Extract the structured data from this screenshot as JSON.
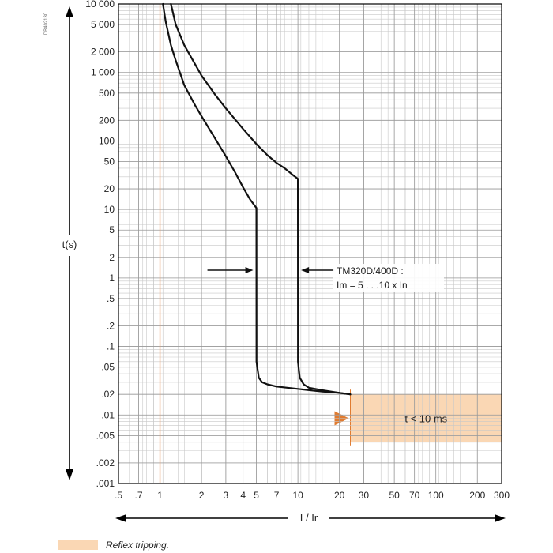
{
  "chart_data": {
    "type": "line",
    "title": "",
    "code": "DB402130",
    "xlabel": "I / Ir",
    "ylabel": "t(s)",
    "xscale": "log",
    "yscale": "log",
    "xlim": [
      0.5,
      300
    ],
    "ylim": [
      0.001,
      10000
    ],
    "grid": true,
    "x_tick_labels": [
      {
        "value": 0.5,
        "label": ".5"
      },
      {
        "value": 0.7,
        "label": ".7"
      },
      {
        "value": 1,
        "label": "1"
      },
      {
        "value": 2,
        "label": "2"
      },
      {
        "value": 3,
        "label": "3"
      },
      {
        "value": 4,
        "label": "4"
      },
      {
        "value": 5,
        "label": "5"
      },
      {
        "value": 7,
        "label": "7"
      },
      {
        "value": 10,
        "label": "10"
      },
      {
        "value": 20,
        "label": "20"
      },
      {
        "value": 30,
        "label": "30"
      },
      {
        "value": 50,
        "label": "50"
      },
      {
        "value": 70,
        "label": "70"
      },
      {
        "value": 100,
        "label": "100"
      },
      {
        "value": 200,
        "label": "200"
      },
      {
        "value": 300,
        "label": "300"
      }
    ],
    "y_tick_labels": [
      {
        "value": 10000,
        "label": "10 000"
      },
      {
        "value": 5000,
        "label": "5 000"
      },
      {
        "value": 2000,
        "label": "2 000"
      },
      {
        "value": 1000,
        "label": "1 000"
      },
      {
        "value": 500,
        "label": "500"
      },
      {
        "value": 200,
        "label": "200"
      },
      {
        "value": 100,
        "label": "100"
      },
      {
        "value": 50,
        "label": "50"
      },
      {
        "value": 20,
        "label": "20"
      },
      {
        "value": 10,
        "label": "10"
      },
      {
        "value": 5,
        "label": "5"
      },
      {
        "value": 2,
        "label": "2"
      },
      {
        "value": 1,
        "label": "1"
      },
      {
        "value": 0.5,
        "label": ".5"
      },
      {
        "value": 0.2,
        "label": ".2"
      },
      {
        "value": 0.1,
        "label": ".1"
      },
      {
        "value": 0.05,
        "label": ".05"
      },
      {
        "value": 0.02,
        "label": ".02"
      },
      {
        "value": 0.01,
        "label": ".01"
      },
      {
        "value": 0.005,
        "label": ".005"
      },
      {
        "value": 0.002,
        "label": ".002"
      },
      {
        "value": 0.001,
        "label": ".001"
      }
    ],
    "series": [
      {
        "x": [
          1.05,
          1.1,
          1.2,
          1.3,
          1.5,
          1.8,
          2,
          2.5,
          3,
          3.5,
          4,
          4.5,
          5,
          5.01,
          5.2,
          5.5,
          6,
          7,
          10,
          15,
          20,
          24
        ],
        "y": [
          10000,
          5500,
          2500,
          1500,
          650,
          330,
          230,
          110,
          60,
          35,
          21,
          14,
          10.5,
          0.06,
          0.035,
          0.03,
          0.028,
          0.026,
          0.024,
          0.022,
          0.021,
          0.02
        ]
      },
      {
        "x": [
          1.2,
          1.3,
          1.5,
          2,
          2.5,
          3,
          4,
          5,
          6,
          7,
          8,
          9,
          10,
          10.01,
          10.3,
          11,
          12,
          15,
          20,
          24
        ],
        "y": [
          10000,
          5000,
          2500,
          900,
          480,
          300,
          150,
          90,
          62,
          48,
          40,
          33,
          28,
          0.06,
          0.035,
          0.028,
          0.025,
          0.023,
          0.021,
          0.02
        ]
      }
    ],
    "reference_line_x": 1,
    "band": {
      "x_start": 24,
      "x_end": 300,
      "y_top": 0.02,
      "y_bottom": 0.004,
      "label": "t < 10 ms"
    },
    "annotations": {
      "im_label_line1": "TM320D/400D :",
      "im_label_line2": "Im = 5 . . .10 x In",
      "im_arrow_left_x": 5,
      "im_arrow_right_x": 10,
      "im_arrow_y": 1.3
    },
    "legend": {
      "label": "Reflex tripping.",
      "placement": "bottom-left"
    },
    "colors": {
      "curve": "#111111",
      "grid_major": "#999999",
      "grid_minor": "#c8c8c8",
      "band_fill": "#fad7b4",
      "band_edge": "#e07b30",
      "reference_line": "#e8a070",
      "axes": "#000000"
    }
  }
}
